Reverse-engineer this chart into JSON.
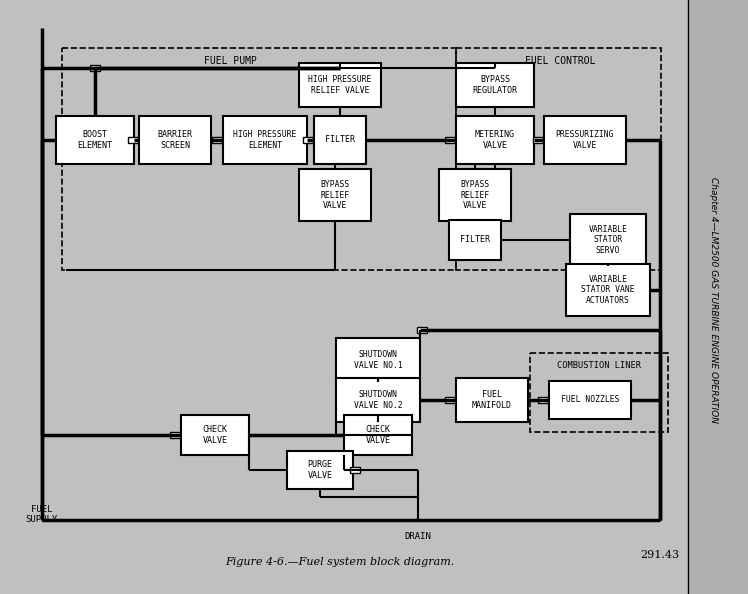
{
  "bg_color": "#c0c0c0",
  "sidebar_color": "#b8b8b8",
  "line_color": "#000000",
  "box_fill": "#ffffff",
  "title": "Figure 4-6.—Fuel system block diagram.",
  "page_num": "291.43",
  "chapter_text": "Chapter 4—LM2500 GAS TURBINE ENGINE OPERATION",
  "fig_w": 7.48,
  "fig_h": 5.94,
  "dpi": 100
}
